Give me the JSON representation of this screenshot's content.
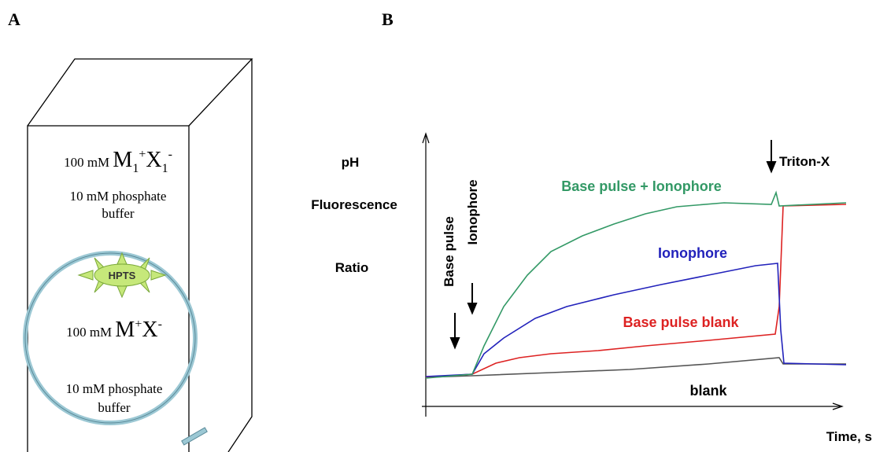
{
  "panel_a": {
    "label": "A",
    "outer_solution": {
      "concentration": "100 mM",
      "cation": "M",
      "cation_sub": "1",
      "cation_charge": "+",
      "anion": "X",
      "anion_sub": "1",
      "anion_charge": "-"
    },
    "outer_buffer": [
      "10 mM phosphate",
      "buffer"
    ],
    "dye": "HPTS",
    "inner_solution": {
      "concentration": "100 mM",
      "cation": "M",
      "cation_charge": "+",
      "anion": "X",
      "anion_charge": "-"
    },
    "inner_buffer": [
      "10 mM phosphate",
      "buffer"
    ]
  },
  "panel_b": {
    "label": "B",
    "y_axis_label": [
      "pH",
      "Fluorescence",
      "Ratio"
    ],
    "x_axis_label": "Time, s",
    "events": [
      "Base pulse",
      "Ionophore",
      "Triton-X"
    ],
    "curves": [
      "Base pulse + Ionophore",
      "Ionophore",
      "Base pulse blank",
      "blank"
    ]
  }
}
